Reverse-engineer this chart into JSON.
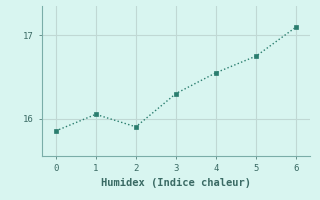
{
  "x": [
    0,
    1,
    2,
    3,
    4,
    5,
    6
  ],
  "y": [
    15.85,
    16.05,
    15.9,
    16.3,
    16.55,
    16.75,
    17.1
  ],
  "line_color": "#2a7d6e",
  "marker_color": "#2a7d6e",
  "bg_color": "#d8f5f0",
  "grid_color": "#c0d8d4",
  "axis_color": "#7aada8",
  "xlabel": "Humidex (Indice chaleur)",
  "xlabel_fontsize": 7.5,
  "ytick_labels": [
    "16",
    "17"
  ],
  "ytick_values": [
    16,
    17
  ],
  "xlim": [
    -0.35,
    6.35
  ],
  "ylim": [
    15.55,
    17.35
  ]
}
